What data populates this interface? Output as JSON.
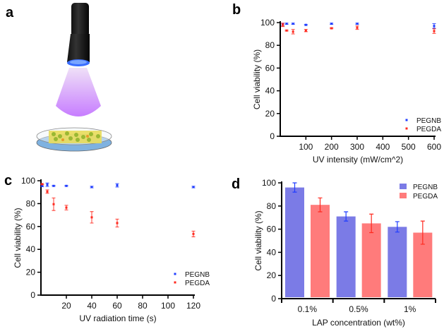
{
  "panel_labels": [
    "a",
    "b",
    "c",
    "d"
  ],
  "colors": {
    "pegnb": "#1f3cff",
    "pegda": "#ff2a1f",
    "pegnb_bar": "#7b7be6",
    "pegda_bar": "#ff7b7b",
    "uv_light": "#c77dff"
  },
  "illustration": {
    "icons": [
      "uv-flashlight-icon",
      "uv-light-beam",
      "petri-dish-hydrogel-icon"
    ]
  },
  "chart_data": [
    {
      "id": "b",
      "type": "scatter",
      "title": "",
      "xlabel": "UV intensity (mW/cm^2)",
      "ylabel": "Cell viability (%)",
      "xlim": [
        0,
        600
      ],
      "ylim": [
        0,
        100
      ],
      "xticks": [
        100,
        200,
        300,
        400,
        500,
        600
      ],
      "yticks": [
        0,
        20,
        40,
        60,
        80,
        100
      ],
      "legend": "bottom-right",
      "x": [
        10,
        25,
        50,
        100,
        200,
        300,
        600
      ],
      "series": [
        {
          "name": "PEGNB",
          "values": [
            98.5,
            99,
            99,
            98,
            99,
            99,
            97
          ],
          "errors": [
            1,
            0.5,
            0.5,
            0.5,
            0.5,
            0.5,
            2
          ]
        },
        {
          "name": "PEGDA",
          "values": [
            98,
            93,
            92,
            93,
            95,
            95.5,
            92.5
          ],
          "errors": [
            1.5,
            0.5,
            2,
            1,
            0.5,
            1.5,
            2
          ]
        }
      ]
    },
    {
      "id": "c",
      "type": "scatter",
      "title": "",
      "xlabel": "UV radiation time (s)",
      "ylabel": "Cell viability (%)",
      "xlim": [
        0,
        120
      ],
      "ylim": [
        0,
        100
      ],
      "xticks": [
        20,
        40,
        60,
        80,
        100,
        120
      ],
      "yticks": [
        0,
        20,
        40,
        60,
        80,
        100
      ],
      "legend": "bottom-right",
      "x": [
        1,
        5,
        10,
        20,
        40,
        60,
        120
      ],
      "series": [
        {
          "name": "PEGNB",
          "values": [
            95.5,
            96.5,
            95.5,
            95.5,
            94.5,
            96,
            94.5
          ],
          "errors": [
            0.8,
            1.5,
            0.5,
            0.5,
            0.7,
            1.5,
            0.7
          ]
        },
        {
          "name": "PEGDA",
          "values": [
            97,
            90.5,
            79.5,
            76.5,
            68,
            63,
            53.5
          ],
          "errors": [
            0.5,
            1.5,
            5.5,
            2,
            5,
            3.5,
            2.5
          ]
        }
      ]
    },
    {
      "id": "d",
      "type": "bar",
      "title": "",
      "xlabel": "LAP concentration (wt%)",
      "ylabel": "Cell viability (%)",
      "ylim": [
        0,
        100
      ],
      "yticks": [
        0,
        20,
        40,
        60,
        80,
        100
      ],
      "legend": "top-right",
      "categories": [
        "0.1%",
        "0.5%",
        "1%"
      ],
      "series": [
        {
          "name": "PEGNB",
          "values": [
            96,
            71,
            62
          ],
          "errors": [
            4,
            4,
            4.5
          ]
        },
        {
          "name": "PEGDA",
          "values": [
            81,
            65,
            57
          ],
          "errors": [
            6,
            8,
            10
          ]
        }
      ]
    }
  ]
}
